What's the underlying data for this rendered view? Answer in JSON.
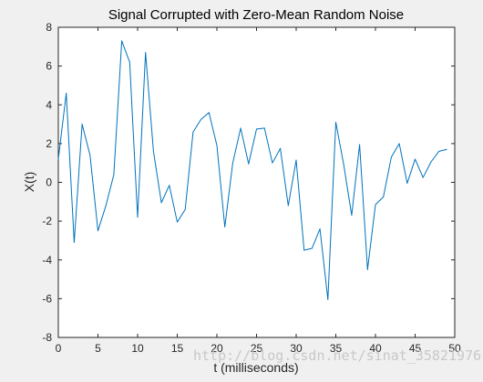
{
  "chart_data": {
    "type": "line",
    "title": "Signal Corrupted with Zero-Mean Random Noise",
    "xlabel": "t (milliseconds)",
    "ylabel": "X(t)",
    "xlim": [
      0,
      50
    ],
    "ylim": [
      -8,
      8
    ],
    "xticks": [
      "0",
      "5",
      "10",
      "15",
      "20",
      "25",
      "30",
      "35",
      "40",
      "45",
      "50"
    ],
    "yticks": [
      "-8",
      "-6",
      "-4",
      "-2",
      "0",
      "2",
      "4",
      "6",
      "8"
    ],
    "grid": false,
    "series": [
      {
        "color": "#0072bd",
        "x": [
          0,
          1,
          2,
          3,
          4,
          5,
          6,
          7,
          8,
          9,
          10,
          11,
          12,
          13,
          14,
          15,
          16,
          17,
          18,
          19,
          20,
          21,
          22,
          23,
          24,
          25,
          26,
          27,
          28,
          29,
          30,
          31,
          32,
          33,
          34,
          35,
          36,
          37,
          38,
          39,
          40,
          41,
          42,
          43,
          44,
          45,
          46,
          47,
          48,
          49
        ],
        "values": [
          1.2,
          4.6,
          -3.1,
          3.0,
          1.4,
          -2.5,
          -1.2,
          0.4,
          7.3,
          6.2,
          -1.8,
          6.7,
          1.6,
          -1.05,
          -0.15,
          -2.05,
          -1.4,
          2.6,
          3.25,
          3.6,
          1.9,
          -2.3,
          1.0,
          2.8,
          0.95,
          2.75,
          2.8,
          1.0,
          1.75,
          -1.2,
          1.15,
          -3.5,
          -3.4,
          -2.4,
          -6.05,
          3.1,
          0.9,
          -1.7,
          1.95,
          -4.5,
          -1.15,
          -0.75,
          1.3,
          2.0,
          -0.05,
          1.2,
          0.25,
          1.05,
          1.6,
          1.7
        ]
      }
    ]
  },
  "watermark": "http://blog.csdn.net/sinat_35821976"
}
